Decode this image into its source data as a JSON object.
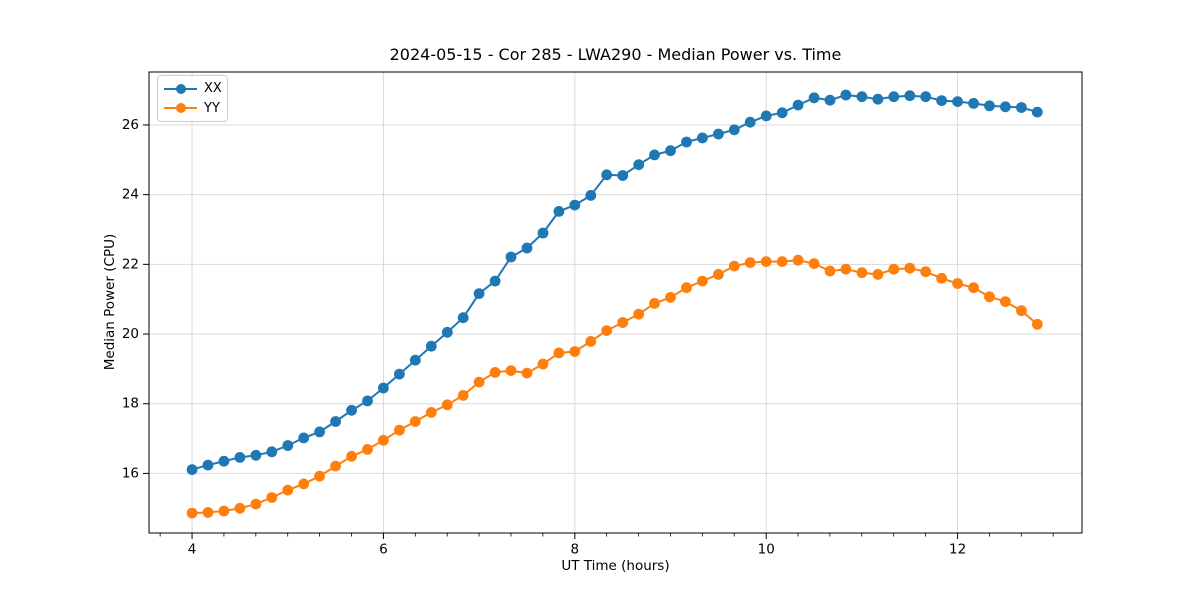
{
  "figure": {
    "background": "#ffffff",
    "plot_background": "#ffffff",
    "grid_color": "#d9d9d9",
    "spine_color": "#000000"
  },
  "chart_data": {
    "type": "line",
    "title": "2024-05-15 - Cor 285 - LWA290 - Median Power vs. Time",
    "xlabel": "UT Time (hours)",
    "ylabel": "Median Power (CPU)",
    "xlim": [
      3.55,
      13.3
    ],
    "ylim": [
      14.29,
      27.52
    ],
    "x_ticks": [
      4,
      6,
      8,
      10,
      12
    ],
    "y_ticks": [
      16,
      18,
      20,
      22,
      24,
      26
    ],
    "x_minor_tick_step": 0.3333,
    "grid": true,
    "legend": {
      "position": "upper left",
      "entries": [
        "XX",
        "YY"
      ]
    },
    "x": [
      4.0,
      4.167,
      4.333,
      4.5,
      4.667,
      4.833,
      5.0,
      5.167,
      5.333,
      5.5,
      5.667,
      5.833,
      6.0,
      6.167,
      6.333,
      6.5,
      6.667,
      6.833,
      7.0,
      7.167,
      7.333,
      7.5,
      7.667,
      7.833,
      8.0,
      8.167,
      8.333,
      8.5,
      8.667,
      8.833,
      9.0,
      9.167,
      9.333,
      9.5,
      9.667,
      9.833,
      10.0,
      10.167,
      10.333,
      10.5,
      10.667,
      10.833,
      11.0,
      11.167,
      11.333,
      11.5,
      11.667,
      11.833,
      12.0,
      12.167,
      12.333,
      12.5,
      12.667,
      12.833
    ],
    "series": [
      {
        "name": "XX",
        "color": "#1f77b4",
        "values": [
          16.11,
          16.24,
          16.35,
          16.46,
          16.52,
          16.62,
          16.8,
          17.02,
          17.19,
          17.49,
          17.81,
          18.08,
          18.45,
          18.85,
          19.25,
          19.65,
          20.05,
          20.47,
          21.16,
          21.52,
          22.21,
          22.47,
          22.9,
          23.52,
          23.7,
          23.98,
          24.57,
          24.55,
          24.86,
          25.14,
          25.26,
          25.51,
          25.63,
          25.74,
          25.86,
          26.08,
          26.26,
          26.35,
          26.57,
          26.78,
          26.71,
          26.86,
          26.81,
          26.74,
          26.81,
          26.84,
          26.81,
          26.7,
          26.67,
          26.62,
          26.55,
          26.52,
          26.5,
          26.37
        ]
      },
      {
        "name": "YY",
        "color": "#ff7f0e",
        "values": [
          14.86,
          14.88,
          14.92,
          15.0,
          15.12,
          15.31,
          15.52,
          15.7,
          15.92,
          16.21,
          16.49,
          16.69,
          16.95,
          17.24,
          17.49,
          17.75,
          17.97,
          18.24,
          18.62,
          18.9,
          18.95,
          18.88,
          19.14,
          19.46,
          19.5,
          19.79,
          20.1,
          20.33,
          20.57,
          20.88,
          21.05,
          21.33,
          21.52,
          21.71,
          21.95,
          22.05,
          22.08,
          22.08,
          22.12,
          22.02,
          21.81,
          21.86,
          21.76,
          21.71,
          21.86,
          21.89,
          21.79,
          21.6,
          21.45,
          21.33,
          21.07,
          20.93,
          20.67,
          20.28
        ]
      }
    ]
  }
}
